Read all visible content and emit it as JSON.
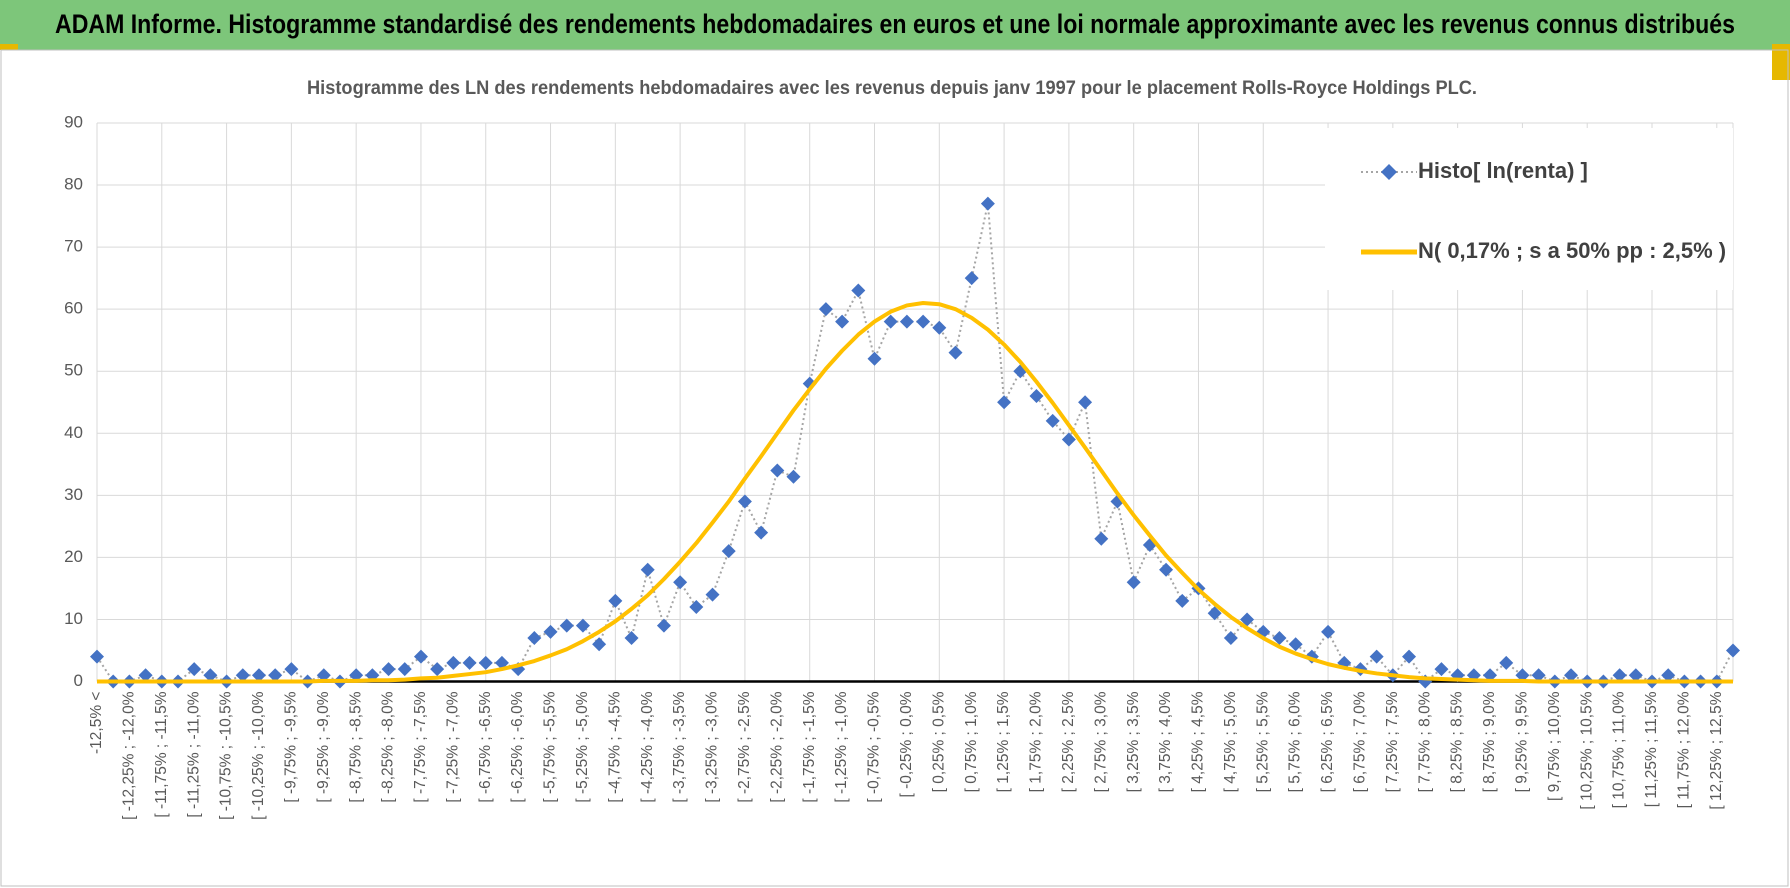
{
  "banner": "ADAM Informe. Histogramme standardisé des rendements hebdomadaires en euros et une loi normale approximante avec les revenus connus distribués",
  "chart_data": {
    "type": "line",
    "title": "Histogramme  des LN des rendements hebdomadaires avec les revenus depuis janv 1997 pour le placement Rolls-Royce Holdings PLC.",
    "categories": [
      "-12,5% <",
      null,
      "[ -12,25% ; -12,0%",
      null,
      "[ -11,75% ; -11,5%",
      null,
      "[ -11,25% ; -11,0%",
      null,
      "[ -10,75% ; -10,5%",
      null,
      "[ -10,25% ; -10,0%",
      null,
      "[ -9,75% ; -9,5%",
      null,
      "[ -9,25% ; -9,0%",
      null,
      "[ -8,75% ; -8,5%",
      null,
      "[ -8,25% ; -8,0%",
      null,
      "[ -7,75% ; -7,5%",
      null,
      "[ -7,25% ; -7,0%",
      null,
      "[ -6,75% ; -6,5%",
      null,
      "[ -6,25% ; -6,0%",
      null,
      "[ -5,75% ; -5,5%",
      null,
      "[ -5,25% ; -5,0%",
      null,
      "[ -4,75% ; -4,5%",
      null,
      "[ -4,25% ; -4,0%",
      null,
      "[ -3,75% ; -3,5%",
      null,
      "[ -3,25% ; -3,0%",
      null,
      "[ -2,75% ; -2,5%",
      null,
      "[ -2,25% ; -2,0%",
      null,
      "[ -1,75% ; -1,5%",
      null,
      "[ -1,25% ; -1,0%",
      null,
      "[ -0,75% ; -0,5%",
      null,
      "[ -0,25% ; 0,0%",
      null,
      "[ 0,25% ; 0,5%",
      null,
      "[ 0,75% ; 1,0%",
      null,
      "[ 1,25% ; 1,5%",
      null,
      "[ 1,75% ; 2,0%",
      null,
      "[ 2,25% ; 2,5%",
      null,
      "[ 2,75% ; 3,0%",
      null,
      "[ 3,25% ; 3,5%",
      null,
      "[ 3,75% ; 4,0%",
      null,
      "[ 4,25% ; 4,5%",
      null,
      "[ 4,75% ; 5,0%",
      null,
      "[ 5,25% ; 5,5%",
      null,
      "[ 5,75% ; 6,0%",
      null,
      "[ 6,25% ; 6,5%",
      null,
      "[ 6,75% ; 7,0%",
      null,
      "[ 7,25% ; 7,5%",
      null,
      "[ 7,75% ; 8,0%",
      null,
      "[ 8,25% ; 8,5%",
      null,
      "[ 8,75% ; 9,0%",
      null,
      "[ 9,25% ; 9,5%",
      null,
      "[ 9,75% ; 10,0%",
      null,
      "[ 10,25% ; 10,5%",
      null,
      "[ 10,75% ; 11,0%",
      null,
      "[ 11,25% ; 11,5%",
      null,
      "[ 11,75% ; 12,0%",
      null,
      "[ 12,25% ; 12,5%",
      null
    ],
    "series": [
      {
        "name": "Histo[ ln(renta) ]",
        "color": "#4472c4",
        "line_color": "#a5a5a5",
        "line_style": "dotted",
        "marker": "diamond",
        "values": [
          4,
          0,
          0,
          1,
          0,
          0,
          2,
          1,
          0,
          1,
          1,
          1,
          2,
          0,
          1,
          0,
          1,
          1,
          2,
          2,
          4,
          2,
          3,
          3,
          3,
          3,
          2,
          7,
          8,
          9,
          9,
          6,
          13,
          7,
          18,
          9,
          16,
          12,
          14,
          21,
          29,
          24,
          34,
          33,
          48,
          60,
          58,
          63,
          52,
          58,
          58,
          58,
          57,
          53,
          65,
          77,
          45,
          50,
          46,
          42,
          39,
          45,
          23,
          29,
          16,
          22,
          18,
          13,
          15,
          11,
          7,
          10,
          8,
          7,
          6,
          4,
          8,
          3,
          2,
          4,
          1,
          4,
          0,
          2,
          1,
          1,
          1,
          3,
          1,
          1,
          0,
          1,
          0,
          0,
          1,
          1,
          0,
          1,
          0,
          0,
          0,
          5
        ]
      },
      {
        "name": "N( 0,17% ; s a 50% pp : 2,5% )",
        "color": "#ffc000",
        "line_style": "solid",
        "marker": "none",
        "values": [
          0,
          0,
          0,
          0,
          0,
          0,
          0,
          0,
          0,
          0,
          0,
          0,
          0,
          0,
          0.1,
          0.1,
          0.1,
          0.2,
          0.2,
          0.3,
          0.5,
          0.6,
          0.9,
          1.2,
          1.5,
          2.0,
          2.6,
          3.3,
          4.2,
          5.2,
          6.5,
          8.0,
          9.7,
          11.7,
          13.9,
          16.5,
          19.3,
          22.3,
          25.6,
          29.0,
          32.7,
          36.3,
          40.0,
          43.7,
          47.1,
          50.4,
          53.3,
          55.9,
          58.0,
          59.6,
          60.6,
          61.0,
          60.8,
          60.0,
          58.6,
          56.7,
          54.3,
          51.5,
          48.3,
          44.9,
          41.3,
          37.7,
          34.0,
          30.3,
          26.8,
          23.5,
          20.3,
          17.5,
          14.8,
          12.5,
          10.4,
          8.6,
          7.0,
          5.6,
          4.5,
          3.6,
          2.8,
          2.2,
          1.7,
          1.3,
          1.0,
          0.7,
          0.5,
          0.4,
          0.3,
          0.2,
          0.1,
          0.1,
          0.1,
          0,
          0,
          0,
          0,
          0,
          0,
          0,
          0,
          0,
          0,
          0,
          0,
          0
        ]
      }
    ],
    "ylim": [
      0,
      90
    ],
    "yticks": [
      0,
      10,
      20,
      30,
      40,
      50,
      60,
      70,
      80,
      90
    ],
    "grid": true,
    "legend": "top-right"
  }
}
